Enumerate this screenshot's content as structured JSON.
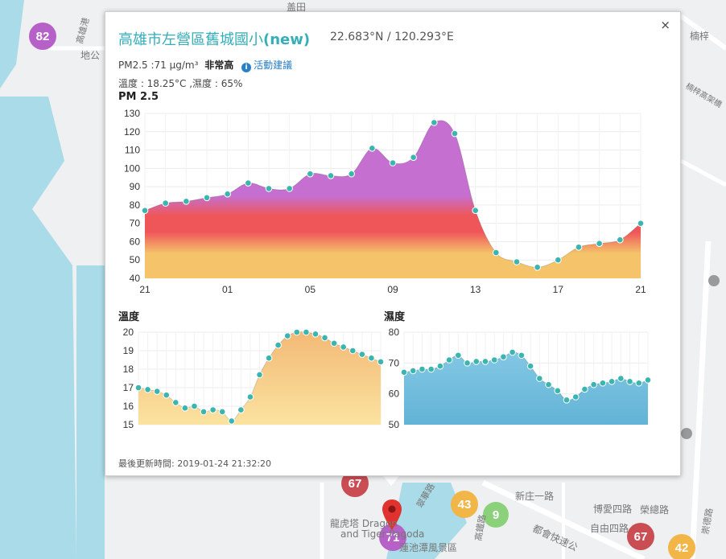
{
  "map": {
    "markers": [
      {
        "label": "82",
        "color": "#b561c7"
      },
      {
        "label": "67",
        "color": "#c94d53"
      },
      {
        "label": "43",
        "color": "#f1b548"
      },
      {
        "label": "9",
        "color": "#8bd17c"
      },
      {
        "label": "67",
        "color": "#c94d53"
      },
      {
        "label": "42",
        "color": "#f1b548"
      },
      {
        "label": "71",
        "color": "#b561c7"
      }
    ],
    "labels": [
      "盖田",
      "高雄港",
      "地公",
      "楠梓",
      "楠梓高架橋",
      "龍虎塔 Dragon",
      "and Tiger Pagoda",
      "蓮池潭風景區",
      "新庄一路",
      "都會快速公",
      "博愛四路",
      "自由四路",
      "榮總路",
      "翠華路",
      "高鐵路",
      "崇德路"
    ]
  },
  "popup": {
    "close": "×",
    "title_main": "高雄市左營區舊城國小",
    "title_tag": "(new)",
    "coords": "22.683°N / 120.293°E",
    "pm_text": "PM2.5 :71 μg/m³",
    "pm_level": "非常高",
    "info_icon": "i",
    "tip": "活動建議",
    "weather": "溫度 : 18.25°C ,濕度 : 65%",
    "updated": "最後更新時間: 2019-01-24 21:32:20"
  },
  "chart_data": [
    {
      "type": "area",
      "title": "PM 2.5",
      "ylim": [
        40,
        130
      ],
      "yticks": [
        "40",
        "50",
        "60",
        "70",
        "80",
        "90",
        "100",
        "110",
        "120",
        "130"
      ],
      "xticks": [
        "21",
        "01",
        "05",
        "09",
        "13",
        "17",
        "21"
      ],
      "values": [
        77,
        81,
        82,
        84,
        86,
        92,
        89,
        89,
        97,
        96,
        97,
        111,
        103,
        106,
        125,
        119,
        77,
        54,
        49,
        46,
        50,
        57,
        59,
        61,
        70
      ],
      "colors": {
        "top": "#c570d0",
        "mid": "#ef5659",
        "bottom": "#f5c46a",
        "dot": "#3ab5b0"
      }
    },
    {
      "type": "area",
      "title": "溫度",
      "ylim": [
        15,
        20
      ],
      "yticks": [
        "15",
        "16",
        "17",
        "18",
        "19",
        "20"
      ],
      "values": [
        17.0,
        16.9,
        16.8,
        16.6,
        16.2,
        15.9,
        16.0,
        15.7,
        15.8,
        15.7,
        15.2,
        15.8,
        16.5,
        17.7,
        18.6,
        19.3,
        19.8,
        20.0,
        20.0,
        19.9,
        19.7,
        19.4,
        19.2,
        19.0,
        18.8,
        18.6,
        18.4
      ],
      "colors": {
        "top": "#f3b976",
        "bottom": "#fbe3a0",
        "dot": "#3ab5b0"
      }
    },
    {
      "type": "area",
      "title": "濕度",
      "ylim": [
        50,
        80
      ],
      "yticks": [
        "50",
        "60",
        "70",
        "80"
      ],
      "values": [
        67,
        67.5,
        68,
        68,
        69,
        71,
        72.5,
        70,
        70.5,
        70.5,
        71,
        72,
        73.5,
        72.5,
        69,
        65,
        63,
        61,
        58,
        59,
        61.5,
        63,
        63.5,
        64,
        65,
        64,
        63.5,
        64.5
      ],
      "colors": {
        "top": "#8ccde8",
        "bottom": "#62b3d6",
        "dot": "#3ab5b0"
      }
    }
  ]
}
